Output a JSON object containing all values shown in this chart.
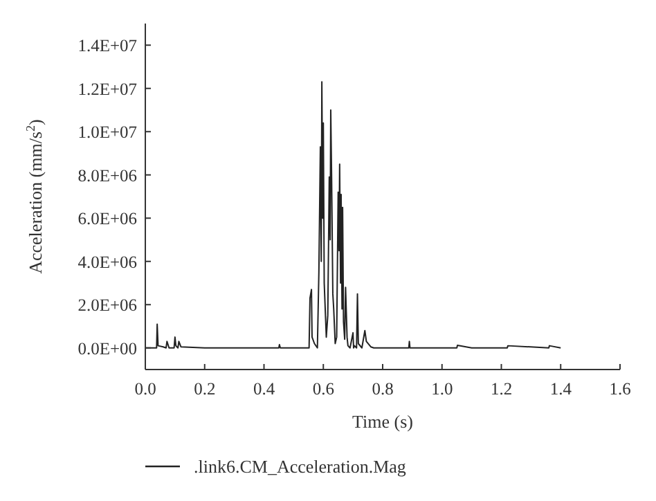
{
  "chart_data": {
    "type": "line",
    "xlabel": "Time (s)",
    "ylabel": "Acceleration (mm/s$^{2}$)",
    "legend": "bottom",
    "grid": false,
    "xlim": [
      0,
      1.6
    ],
    "ylim": [
      -1000000,
      15000000
    ],
    "xticks": [
      {
        "value": 0,
        "label": "0.0"
      },
      {
        "value": 0.2,
        "label": "0.2"
      },
      {
        "value": 0.4,
        "label": "0.4"
      },
      {
        "value": 0.6,
        "label": "0.6"
      },
      {
        "value": 0.8,
        "label": "0.8"
      },
      {
        "value": 1,
        "label": "1.0"
      },
      {
        "value": 1.2,
        "label": "1.2"
      },
      {
        "value": 1.4,
        "label": "1.4"
      },
      {
        "value": 1.6,
        "label": "1.6"
      }
    ],
    "yticks": [
      {
        "value": 0,
        "label": "0.0E+00"
      },
      {
        "value": 2000000,
        "label": "2.0E+06"
      },
      {
        "value": 4000000,
        "label": "4.0E+06"
      },
      {
        "value": 6000000,
        "label": "6.0E+06"
      },
      {
        "value": 8000000,
        "label": "8.0E+06"
      },
      {
        "value": 10000000,
        "label": "1.0E+07"
      },
      {
        "value": 12000000,
        "label": "1.2E+07"
      },
      {
        "value": 14000000,
        "label": "1.4E+07"
      }
    ],
    "series": [
      {
        "name": ".link6.CM_Acceleration.Mag",
        "color": "#222222",
        "x": [
          0,
          0.038,
          0.04,
          0.043,
          0.06,
          0.07,
          0.073,
          0.08,
          0.097,
          0.1,
          0.103,
          0.11,
          0.113,
          0.12,
          0.2,
          0.45,
          0.452,
          0.455,
          0.47,
          0.552,
          0.555,
          0.56,
          0.562,
          0.57,
          0.58,
          0.585,
          0.59,
          0.593,
          0.595,
          0.598,
          0.6,
          0.603,
          0.61,
          0.615,
          0.62,
          0.623,
          0.625,
          0.628,
          0.632,
          0.635,
          0.64,
          0.645,
          0.65,
          0.653,
          0.655,
          0.658,
          0.66,
          0.663,
          0.665,
          0.668,
          0.672,
          0.675,
          0.68,
          0.683,
          0.69,
          0.7,
          0.702,
          0.705,
          0.712,
          0.715,
          0.718,
          0.73,
          0.74,
          0.745,
          0.76,
          0.77,
          0.8,
          0.888,
          0.89,
          0.892,
          0.95,
          1.05,
          1.052,
          1.1,
          1.22,
          1.222,
          1.36,
          1.362,
          1.4
        ],
        "values": [
          0,
          0,
          1100000,
          100000,
          50000,
          0,
          300000,
          0,
          0,
          500000,
          100000,
          0,
          300000,
          50000,
          0,
          0,
          150000,
          0,
          0,
          0,
          2300000,
          2700000,
          500000,
          200000,
          0,
          3500000,
          9300000,
          4000000,
          12300000,
          6000000,
          10400000,
          3000000,
          500000,
          1500000,
          7900000,
          5000000,
          11000000,
          7800000,
          2500000,
          1800000,
          200000,
          500000,
          7200000,
          4500000,
          8500000,
          3000000,
          7100000,
          1800000,
          6500000,
          1200000,
          400000,
          2800000,
          500000,
          100000,
          0,
          700000,
          0,
          100000,
          0,
          2500000,
          200000,
          0,
          800000,
          300000,
          50000,
          0,
          0,
          0,
          300000,
          0,
          0,
          0,
          120000,
          0,
          0,
          100000,
          0,
          100000,
          0
        ]
      }
    ]
  }
}
